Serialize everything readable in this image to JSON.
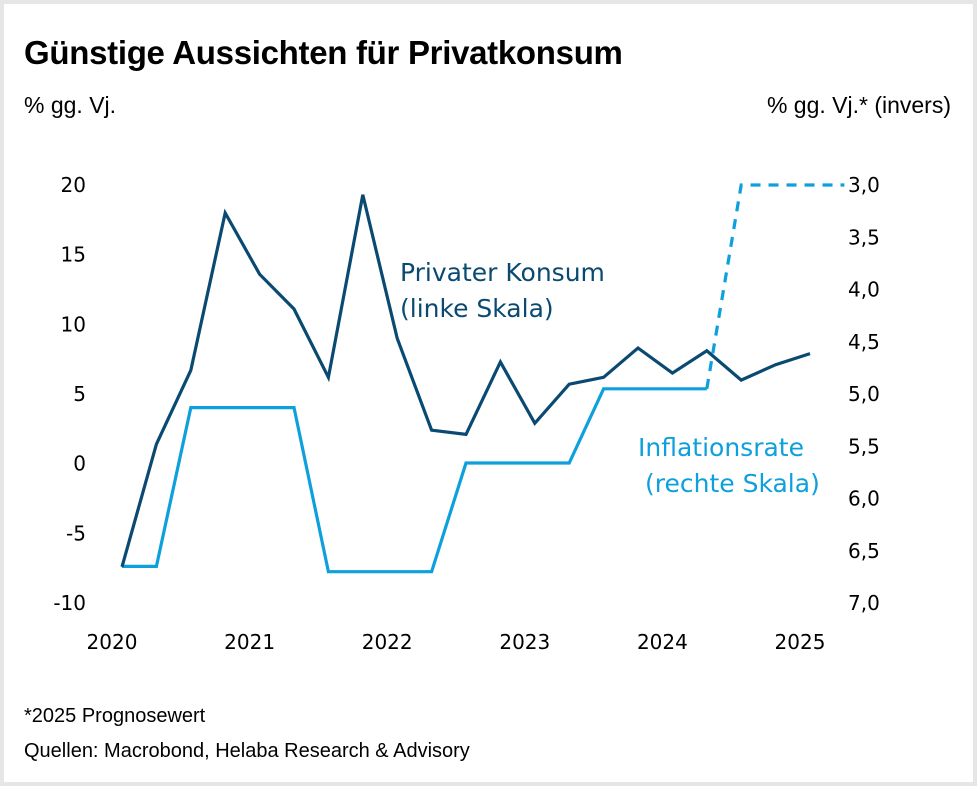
{
  "colors": {
    "consumption": "#0a4a72",
    "inflation": "#0da0dc",
    "text": "#000000"
  },
  "chart_data": {
    "type": "line",
    "title": "Günstige Aussichten für Privatkonsum",
    "ylabel_left": "% gg. Vj.",
    "ylabel_right": "% gg. Vj.* (invers)",
    "x_ticks": [
      "2020",
      "2021",
      "2022",
      "2023",
      "2024",
      "2025"
    ],
    "y_left": {
      "range": [
        -10,
        20
      ],
      "ticks": [
        "20",
        "15",
        "10",
        "5",
        "0",
        "-5",
        "-10"
      ],
      "tick_values": [
        20,
        15,
        10,
        5,
        0,
        -5,
        -10
      ]
    },
    "y_right": {
      "range": [
        3.0,
        7.0
      ],
      "inverted": true,
      "ticks": [
        "3,0",
        "3,5",
        "4,0",
        "4,5",
        "5,0",
        "5,5",
        "6,0",
        "6,5",
        "7,0"
      ],
      "tick_values": [
        3.0,
        3.5,
        4.0,
        4.5,
        5.0,
        5.5,
        6.0,
        6.5,
        7.0
      ]
    },
    "x_start": 2020.0,
    "x_step": 0.25,
    "series": [
      {
        "name": "Privater Konsum",
        "label_lines": [
          "Privater Konsum",
          "(linke Skala)"
        ],
        "axis": "left",
        "values": [
          -7.4,
          1.4,
          6.7,
          18.0,
          13.6,
          11.1,
          6.2,
          19.3,
          9.0,
          2.4,
          2.1,
          7.3,
          2.9,
          5.7,
          6.2,
          8.3,
          6.5,
          8.1,
          6.0,
          7.1,
          7.9
        ]
      },
      {
        "name": "Inflationsrate",
        "label_lines": [
          "Inflationsrate",
          "(rechte Skala)"
        ],
        "axis": "right",
        "values": [
          6.65,
          6.65,
          5.13,
          5.13,
          5.13,
          5.13,
          6.7,
          6.7,
          6.7,
          6.7,
          5.66,
          5.66,
          5.66,
          5.66,
          4.95,
          4.95,
          4.95,
          4.95
        ],
        "forecast": {
          "x_quarter_index": [
            17,
            18,
            21
          ],
          "values": [
            4.95,
            3.0,
            3.0
          ]
        }
      }
    ]
  },
  "footnote": "*2025 Prognosewert",
  "source": "Quellen: Macrobond, Helaba Research & Advisory"
}
